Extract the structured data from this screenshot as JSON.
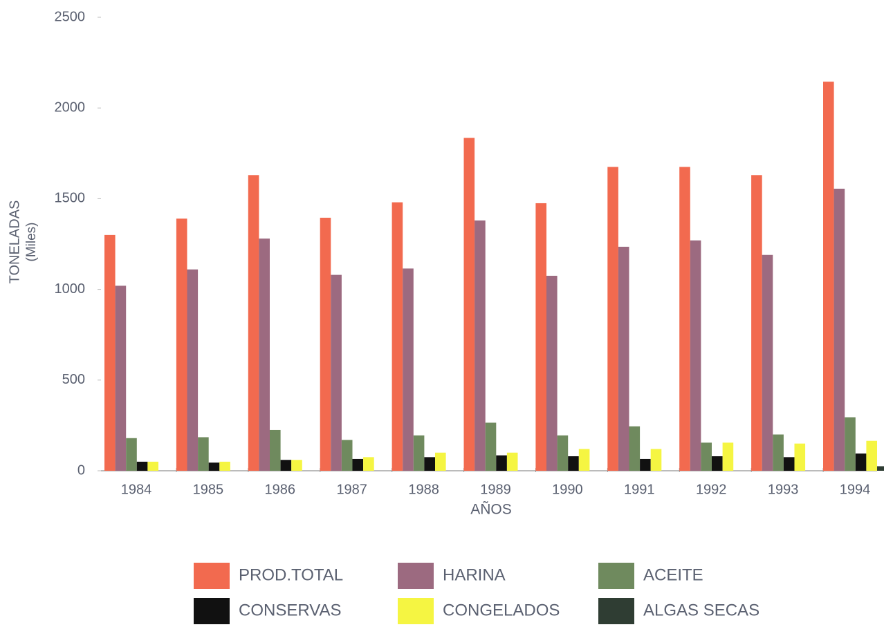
{
  "chart_data": {
    "type": "bar",
    "ylabel": "TONELADAS",
    "ylabel_sub": "(Miles)",
    "xlabel": "AÑOS",
    "categories": [
      "1984",
      "1985",
      "1986",
      "1987",
      "1988",
      "1989",
      "1990",
      "1991",
      "1992",
      "1993",
      "1994"
    ],
    "series": [
      {
        "name": "PROD.TOTAL",
        "color": "#f26a4f",
        "values": [
          1300,
          1390,
          1630,
          1395,
          1480,
          1835,
          1475,
          1675,
          1675,
          1630,
          2145
        ]
      },
      {
        "name": "HARINA",
        "color": "#9c6a80",
        "values": [
          1020,
          1110,
          1280,
          1080,
          1115,
          1380,
          1075,
          1235,
          1270,
          1190,
          1555
        ]
      },
      {
        "name": "ACEITE",
        "color": "#6f8a5e",
        "values": [
          180,
          185,
          225,
          170,
          195,
          265,
          195,
          245,
          155,
          200,
          295
        ]
      },
      {
        "name": "CONSERVAS",
        "color": "#111111",
        "values": [
          50,
          45,
          60,
          65,
          75,
          85,
          80,
          65,
          80,
          75,
          95
        ]
      },
      {
        "name": "CONGELADOS",
        "color": "#f5f542",
        "values": [
          50,
          50,
          60,
          75,
          100,
          100,
          120,
          120,
          155,
          150,
          165
        ]
      },
      {
        "name": "ALGAS SECAS",
        "color": "#2f3d33",
        "values": [
          0,
          0,
          0,
          0,
          0,
          0,
          0,
          0,
          0,
          0,
          25
        ]
      }
    ],
    "ylim": [
      0,
      2500
    ],
    "yticks": [
      0,
      500,
      1000,
      1500,
      2000,
      2500
    ],
    "grid": false
  }
}
